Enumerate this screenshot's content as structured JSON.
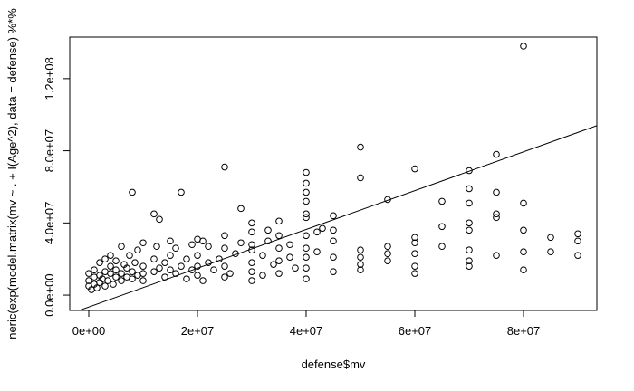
{
  "chart_data": {
    "type": "scatter",
    "x_label": "defense$mv",
    "y_label": "neric(exp(model.matrix(mv ~ . + I(Age^2), data = defense) %*%",
    "x": [
      0,
      0,
      0,
      500000.0,
      1000000.0,
      1000000.0,
      1000000.0,
      1500000.0,
      2000000.0,
      2000000.0,
      2000000.0,
      2500000.0,
      3000000.0,
      3000000.0,
      3000000.0,
      3500000.0,
      4000000.0,
      4000000.0,
      4000000.0,
      4500000.0,
      5000000.0,
      5000000.0,
      5000000.0,
      6000000.0,
      6000000.0,
      6000000.0,
      6500000.0,
      7000000.0,
      7000000.0,
      7500000.0,
      8000000.0,
      8000000.0,
      8000000.0,
      8500000.0,
      9000000.0,
      9000000.0,
      10000000.0,
      10000000.0,
      10000000.0,
      10000000.0,
      12000000.0,
      12000000.0,
      12000000.0,
      12500000.0,
      13000000.0,
      13000000.0,
      14000000.0,
      14000000.0,
      15000000.0,
      15000000.0,
      15000000.0,
      16000000.0,
      16000000.0,
      17000000.0,
      17000000.0,
      18000000.0,
      18000000.0,
      19000000.0,
      19000000.0,
      20000000.0,
      20000000.0,
      20000000.0,
      20000000.0,
      21000000.0,
      21000000.0,
      22000000.0,
      22000000.0,
      23000000.0,
      24000000.0,
      25000000.0,
      25000000.0,
      25000000.0,
      25000000.0,
      25000000.0,
      26000000.0,
      27000000.0,
      28000000.0,
      28000000.0,
      30000000.0,
      30000000.0,
      30000000.0,
      30000000.0,
      30000000.0,
      30000000.0,
      30000000.0,
      32000000.0,
      32000000.0,
      33000000.0,
      33000000.0,
      34000000.0,
      35000000.0,
      35000000.0,
      35000000.0,
      35000000.0,
      35000000.0,
      37000000.0,
      37000000.0,
      38000000.0,
      40000000.0,
      40000000.0,
      40000000.0,
      40000000.0,
      40000000.0,
      40000000.0,
      40000000.0,
      40000000.0,
      40000000.0,
      40000000.0,
      40000000.0,
      42000000.0,
      42000000.0,
      43000000.0,
      45000000.0,
      45000000.0,
      45000000.0,
      45000000.0,
      45000000.0,
      50000000.0,
      50000000.0,
      50000000.0,
      50000000.0,
      50000000.0,
      50000000.0,
      55000000.0,
      55000000.0,
      55000000.0,
      55000000.0,
      60000000.0,
      60000000.0,
      60000000.0,
      60000000.0,
      60000000.0,
      60000000.0,
      65000000.0,
      65000000.0,
      65000000.0,
      70000000.0,
      70000000.0,
      70000000.0,
      70000000.0,
      70000000.0,
      70000000.0,
      70000000.0,
      70000000.0,
      75000000.0,
      75000000.0,
      75000000.0,
      75000000.0,
      75000000.0,
      80000000.0,
      80000000.0,
      80000000.0,
      80000000.0,
      80000000.0,
      85000000.0,
      85000000.0,
      90000000.0,
      90000000.0,
      90000000.0
    ],
    "values": [
      5000000.0,
      8000000.0,
      12000000.0,
      3000000.0,
      6000000.0,
      10000000.0,
      14000000.0,
      4000000.0,
      7000000.0,
      11000000.0,
      18000000.0,
      9000000.0,
      5000000.0,
      13000000.0,
      20000000.0,
      8000000.0,
      12000000.0,
      16000000.0,
      22000000.0,
      6000000.0,
      10000000.0,
      14000000.0,
      19000000.0,
      8000000.0,
      12000000.0,
      27000000.0,
      17000000.0,
      10000000.0,
      15000000.0,
      22000000.0,
      9000000.0,
      13000000.0,
      57000000.0,
      18000000.0,
      11000000.0,
      25000000.0,
      12000000.0,
      16000000.0,
      29000000.0,
      8000000.0,
      45000000.0,
      13000000.0,
      20000000.0,
      27000000.0,
      42000000.0,
      15000000.0,
      18000000.0,
      10000000.0,
      14000000.0,
      30000000.0,
      22000000.0,
      12000000.0,
      26000000.0,
      57000000.0,
      16000000.0,
      20000000.0,
      9000000.0,
      14000000.0,
      28000000.0,
      11000000.0,
      16000000.0,
      22000000.0,
      31000000.0,
      30000000.0,
      8000000.0,
      18000000.0,
      27000000.0,
      14000000.0,
      20000000.0,
      71000000.0,
      26000000.0,
      16000000.0,
      33000000.0,
      10000000.0,
      12000000.0,
      23000000.0,
      48000000.0,
      29000000.0,
      40000000.0,
      35000000.0,
      25000000.0,
      18000000.0,
      8000000.0,
      13000000.0,
      28000000.0,
      22000000.0,
      11000000.0,
      36000000.0,
      30000000.0,
      17000000.0,
      41000000.0,
      33000000.0,
      26000000.0,
      19000000.0,
      12000000.0,
      28000000.0,
      21000000.0,
      15000000.0,
      68000000.0,
      62000000.0,
      57000000.0,
      52000000.0,
      45000000.0,
      43000000.0,
      33000000.0,
      26000000.0,
      21000000.0,
      15000000.0,
      9000000.0,
      35000000.0,
      24000000.0,
      37000000.0,
      44000000.0,
      36000000.0,
      30000000.0,
      21000000.0,
      13000000.0,
      82000000.0,
      65000000.0,
      25000000.0,
      21000000.0,
      17000000.0,
      14000000.0,
      53000000.0,
      27000000.0,
      23000000.0,
      19000000.0,
      70000000.0,
      32000000.0,
      29000000.0,
      23000000.0,
      16000000.0,
      12000000.0,
      52000000.0,
      38000000.0,
      27000000.0,
      69000000.0,
      59000000.0,
      51000000.0,
      40000000.0,
      36000000.0,
      25000000.0,
      19000000.0,
      16000000.0,
      78000000.0,
      57000000.0,
      45000000.0,
      43000000.0,
      22000000.0,
      138000000.0,
      51000000.0,
      36000000.0,
      24000000.0,
      14000000.0,
      32000000.0,
      24000000.0,
      34000000.0,
      30000000.0,
      22000000.0
    ],
    "color": "#000000",
    "abline": {
      "intercept": -6600000.0,
      "slope": 1.075
    },
    "xlim": [
      -3500000.0,
      93500000.0
    ],
    "ylim": [
      -8500000.0,
      143000000.0
    ],
    "xticks": [
      {
        "value": 0,
        "label": "0e+00"
      },
      {
        "value": 20000000.0,
        "label": "2e+07"
      },
      {
        "value": 40000000.0,
        "label": "4e+07"
      },
      {
        "value": 60000000.0,
        "label": "6e+07"
      },
      {
        "value": 80000000.0,
        "label": "8e+07"
      }
    ],
    "yticks": [
      {
        "value": 0,
        "label": "0.0e+00"
      },
      {
        "value": 40000000.0,
        "label": "4.0e+07"
      },
      {
        "value": 80000000.0,
        "label": "8.0e+07"
      },
      {
        "value": 120000000.0,
        "label": "1.2e+08"
      }
    ]
  }
}
